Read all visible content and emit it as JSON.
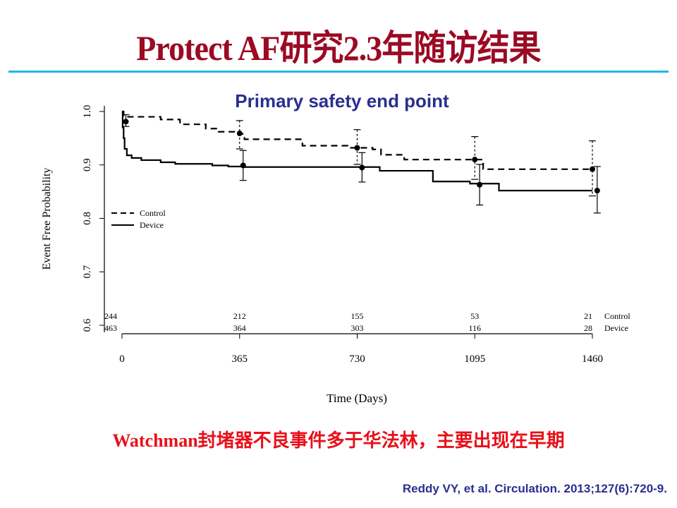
{
  "slide": {
    "title": "Protect AF研究2.3年随访结果",
    "note": "Watchman封堵器不良事件多于华法林，主要出现在早期",
    "citation": "Reddy VY, et al. Circulation. 2013;127(6):720-9.",
    "rule_color": "#22b4ea",
    "title_color": "#9b0a23",
    "note_color": "#e8101a"
  },
  "chart_data": {
    "type": "line",
    "title": "Primary safety end point",
    "xlabel": "Time (Days)",
    "ylabel": "Event Free Probability",
    "xlim": [
      0,
      1460
    ],
    "ylim": [
      0.6,
      1.0
    ],
    "x_ticks": [
      0,
      365,
      730,
      1095,
      1460
    ],
    "x_tick_labels": [
      "0",
      "365",
      "730",
      "1095",
      "1460"
    ],
    "y_ticks": [
      0.6,
      0.7,
      0.8,
      0.9,
      1.0
    ],
    "y_tick_labels": [
      "0.6",
      "0.7",
      "0.8",
      "0.9",
      "1.0"
    ],
    "grid": false,
    "legend_position": "middle-left",
    "series": [
      {
        "name": "Control",
        "style": "dashed",
        "step": [
          [
            0,
            1.0
          ],
          [
            5,
            0.99
          ],
          [
            120,
            0.985
          ],
          [
            180,
            0.976
          ],
          [
            260,
            0.968
          ],
          [
            300,
            0.962
          ],
          [
            365,
            0.958
          ],
          [
            380,
            0.948
          ],
          [
            560,
            0.936
          ],
          [
            700,
            0.932
          ],
          [
            778,
            0.929
          ],
          [
            804,
            0.919
          ],
          [
            876,
            0.91
          ],
          [
            1121,
            0.892
          ],
          [
            1460,
            0.892
          ]
        ],
        "points": [
          {
            "x": 365,
            "y": 0.959,
            "ci": [
              0.93,
              0.983
            ]
          },
          {
            "x": 730,
            "y": 0.932,
            "ci": [
              0.901,
              0.966
            ]
          },
          {
            "x": 1095,
            "y": 0.91,
            "ci": [
              0.873,
              0.953
            ]
          },
          {
            "x": 1460,
            "y": 0.892,
            "ci": [
              0.842,
              0.945
            ]
          }
        ]
      },
      {
        "name": "Device",
        "style": "solid",
        "step": [
          [
            0,
            1.0
          ],
          [
            2,
            0.97
          ],
          [
            5,
            0.95
          ],
          [
            8,
            0.93
          ],
          [
            15,
            0.918
          ],
          [
            30,
            0.913
          ],
          [
            60,
            0.909
          ],
          [
            120,
            0.905
          ],
          [
            165,
            0.902
          ],
          [
            280,
            0.899
          ],
          [
            330,
            0.897
          ],
          [
            380,
            0.896
          ],
          [
            800,
            0.889
          ],
          [
            965,
            0.869
          ],
          [
            1080,
            0.865
          ],
          [
            1170,
            0.852
          ],
          [
            1460,
            0.852
          ]
        ],
        "points": [
          {
            "x": 12,
            "y": 0.981,
            "ci": [
              0.972,
              0.994
            ]
          },
          {
            "x": 376,
            "y": 0.899,
            "ci": [
              0.871,
              0.927
            ]
          },
          {
            "x": 745,
            "y": 0.895,
            "ci": [
              0.868,
              0.923
            ]
          },
          {
            "x": 1110,
            "y": 0.863,
            "ci": [
              0.825,
              0.901
            ]
          },
          {
            "x": 1475,
            "y": 0.852,
            "ci": [
              0.81,
              0.897
            ]
          }
        ]
      }
    ],
    "at_risk": {
      "x": [
        0,
        365,
        730,
        1095,
        1460
      ],
      "rows": [
        {
          "label": "Control",
          "values": [
            "244",
            "212",
            "155",
            "53",
            "21"
          ]
        },
        {
          "label": "Device",
          "values": [
            "463",
            "364",
            "303",
            "116",
            "28"
          ]
        }
      ]
    }
  }
}
